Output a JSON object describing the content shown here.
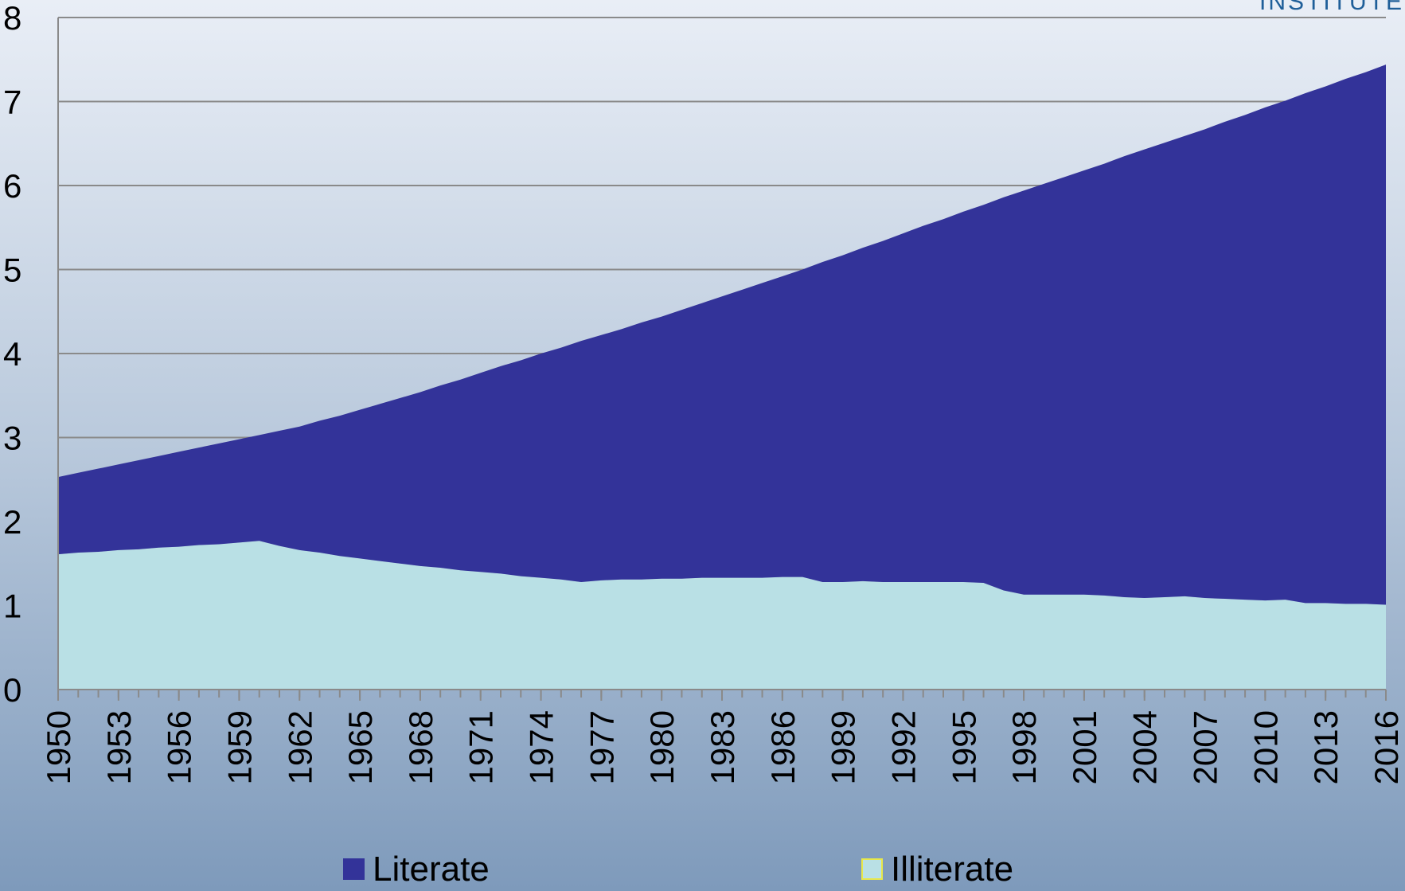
{
  "chart_data": {
    "type": "stacked_area",
    "logo": "INSTITUTE",
    "x": [
      1950,
      1951,
      1952,
      1953,
      1954,
      1955,
      1956,
      1957,
      1958,
      1959,
      1960,
      1961,
      1962,
      1963,
      1964,
      1965,
      1966,
      1967,
      1968,
      1969,
      1970,
      1971,
      1972,
      1973,
      1974,
      1975,
      1976,
      1977,
      1978,
      1979,
      1980,
      1981,
      1982,
      1983,
      1984,
      1985,
      1986,
      1987,
      1988,
      1989,
      1990,
      1991,
      1992,
      1993,
      1994,
      1995,
      1996,
      1997,
      1998,
      1999,
      2000,
      2001,
      2002,
      2003,
      2004,
      2005,
      2006,
      2007,
      2008,
      2009,
      2010,
      2011,
      2012,
      2013,
      2014,
      2015,
      2016
    ],
    "series": [
      {
        "name": "Illiterate",
        "color": "#b9e0e5",
        "legend_border": "#e8e84a",
        "values": [
          1.61,
          1.63,
          1.64,
          1.66,
          1.67,
          1.69,
          1.7,
          1.72,
          1.73,
          1.75,
          1.77,
          1.71,
          1.66,
          1.63,
          1.59,
          1.56,
          1.53,
          1.5,
          1.47,
          1.45,
          1.42,
          1.4,
          1.38,
          1.35,
          1.33,
          1.31,
          1.28,
          1.3,
          1.31,
          1.31,
          1.32,
          1.32,
          1.33,
          1.33,
          1.33,
          1.33,
          1.34,
          1.34,
          1.28,
          1.28,
          1.29,
          1.28,
          1.28,
          1.28,
          1.28,
          1.28,
          1.27,
          1.18,
          1.13,
          1.13,
          1.13,
          1.13,
          1.12,
          1.1,
          1.09,
          1.1,
          1.11,
          1.09,
          1.08,
          1.07,
          1.06,
          1.07,
          1.03,
          1.03,
          1.02,
          1.02,
          1.01
        ]
      },
      {
        "name": "Literate",
        "color": "#333399",
        "legend_border": "#333399",
        "values": [
          0.92,
          0.95,
          0.99,
          1.02,
          1.06,
          1.09,
          1.13,
          1.16,
          1.2,
          1.23,
          1.26,
          1.37,
          1.47,
          1.57,
          1.67,
          1.77,
          1.87,
          1.97,
          2.07,
          2.17,
          2.27,
          2.37,
          2.47,
          2.57,
          2.67,
          2.76,
          2.87,
          2.92,
          2.98,
          3.06,
          3.12,
          3.2,
          3.27,
          3.35,
          3.43,
          3.51,
          3.58,
          3.66,
          3.81,
          3.89,
          3.97,
          4.06,
          4.15,
          4.24,
          4.32,
          4.41,
          4.5,
          4.68,
          4.81,
          4.89,
          4.97,
          5.05,
          5.14,
          5.25,
          5.34,
          5.41,
          5.48,
          5.58,
          5.68,
          5.77,
          5.87,
          5.94,
          6.07,
          6.15,
          6.25,
          6.33,
          6.43
        ]
      }
    ],
    "legend_order": [
      1,
      0
    ],
    "xlim": [
      1950,
      2016
    ],
    "xticks": [
      1950,
      1953,
      1956,
      1959,
      1962,
      1965,
      1968,
      1971,
      1974,
      1977,
      1980,
      1983,
      1986,
      1989,
      1992,
      1995,
      1998,
      2001,
      2004,
      2007,
      2010,
      2013,
      2016
    ],
    "ylim": [
      0,
      8
    ],
    "yticks": [
      0,
      1,
      2,
      3,
      4,
      5,
      6,
      7,
      8
    ],
    "grid": true
  }
}
